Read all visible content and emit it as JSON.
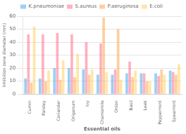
{
  "chart_data": {
    "type": "bar",
    "xlabel": "Essential oils",
    "ylabel": "Inhibition zone diameter (mm)",
    "categories": [
      "Cumin",
      "Parsley",
      "Coriander",
      "Origanum",
      "Ivy",
      "Chamomile",
      "Onion",
      "Basil",
      "Leek",
      "Peppermint",
      "Spearmint"
    ],
    "series": [
      {
        "name": "K.pneumoniae",
        "values": [
          12,
          12,
          20,
          20,
          19,
          15,
          15,
          16,
          16,
          16,
          18
        ]
      },
      {
        "name": "S.aureus",
        "values": [
          46,
          46,
          47,
          46,
          40,
          39,
          19,
          25,
          16,
          14,
          17
        ]
      },
      {
        "name": "P.aeruginosa",
        "values": [
          9,
          10,
          11,
          13,
          15,
          59,
          50,
          13,
          10,
          19,
          15
        ]
      },
      {
        "name": "E.coli",
        "values": [
          52,
          18,
          26,
          31,
          19,
          17,
          11,
          18,
          10,
          15,
          23
        ]
      }
    ],
    "ylim": [
      0,
      60
    ],
    "yticks": [
      0,
      10,
      20,
      30,
      40,
      50,
      60
    ],
    "grid": true,
    "legend": "top"
  }
}
